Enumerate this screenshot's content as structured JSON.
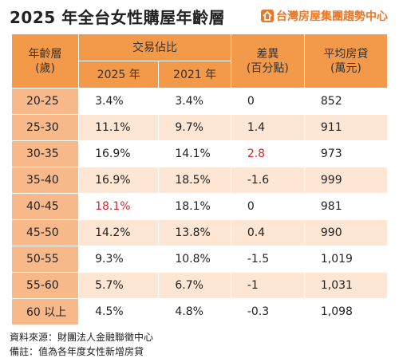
{
  "header": {
    "title": "2025 年全台女性購屋年齡層",
    "logo_text": "台灣房屋集團趨勢中心"
  },
  "table": {
    "header": {
      "age": [
        "年齡層",
        "(歲)"
      ],
      "share": "交易佔比",
      "years": [
        "2025 年",
        "2021 年"
      ],
      "diff": [
        "差異",
        "(百分點)"
      ],
      "loan": [
        "平均房貸",
        "(萬元)"
      ]
    },
    "rows": [
      [
        "20-25",
        "3.4%",
        "3.4%",
        "0",
        "852"
      ],
      [
        "25-30",
        "11.1%",
        "9.7%",
        "1.4",
        "911"
      ],
      [
        "30-35",
        "16.9%",
        "14.1%",
        "2.8",
        "973"
      ],
      [
        "35-40",
        "16.9%",
        "18.5%",
        "-1.6",
        "999"
      ],
      [
        "40-45",
        "18.1%",
        "18.1%",
        "0",
        "981"
      ],
      [
        "45-50",
        "14.2%",
        "13.8%",
        "0.4",
        "990"
      ],
      [
        "50-55",
        "9.3%",
        "10.8%",
        "-1.5",
        "1,019"
      ],
      [
        "55-60",
        "5.7%",
        "6.7%",
        "-1",
        "1,031"
      ],
      [
        "60 以上",
        "4.5%",
        "4.8%",
        "-0.3",
        "1,098"
      ]
    ],
    "highlighted_cells": [
      [
        2,
        3
      ],
      [
        4,
        1
      ]
    ],
    "highlight_color": "#d9262c"
  },
  "footer": {
    "source": "資料來源：財團法人金融聯徵中心",
    "note": "備註：值為各年度女性新增房貸"
  }
}
